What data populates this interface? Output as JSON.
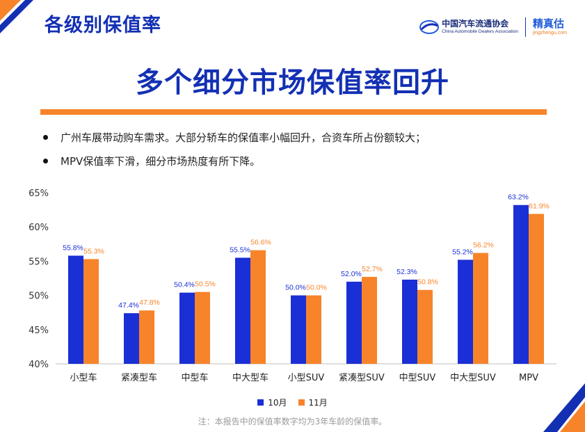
{
  "header": {
    "title": "各级别保值率"
  },
  "logos": {
    "cada_cn": "中国汽车流通协会",
    "cada_en": "China Automobile Dealers Association",
    "jzg_name": "精真估",
    "jzg_url": "jingzhengu.com"
  },
  "main_title": "多个细分市场保值率回升",
  "bullets": [
    "广州车展带动购车需求。大部分轿车的保值率小幅回升，合资车所占份额较大；",
    "MPV保值率下滑，细分市场热度有所下降。"
  ],
  "colors": {
    "blue": "#1a2fd6",
    "orange": "#f7842a",
    "title_blue": "#1330b3"
  },
  "chart_data": {
    "type": "bar",
    "categories": [
      "小型车",
      "紧凑型车",
      "中型车",
      "中大型车",
      "小型SUV",
      "紧凑型SUV",
      "中型SUV",
      "中大型SUV",
      "MPV"
    ],
    "series": [
      {
        "name": "10月",
        "values": [
          55.8,
          47.4,
          50.4,
          55.5,
          50.0,
          52.0,
          52.3,
          55.2,
          63.2
        ],
        "color": "#1a2fd6"
      },
      {
        "name": "11月",
        "values": [
          55.3,
          47.8,
          50.5,
          56.6,
          50.0,
          52.7,
          50.8,
          56.2,
          61.9
        ],
        "color": "#f7842a"
      }
    ],
    "ylim": [
      40,
      65
    ],
    "yticks": [
      "40%",
      "45%",
      "50%",
      "55%",
      "60%",
      "65%"
    ],
    "ytick_values": [
      40,
      45,
      50,
      55,
      60,
      65
    ],
    "value_suffix": "%",
    "legend_position": "bottom",
    "grid": false
  },
  "footnote": "注：本报告中的保值率数字均为3年车龄的保值率。"
}
